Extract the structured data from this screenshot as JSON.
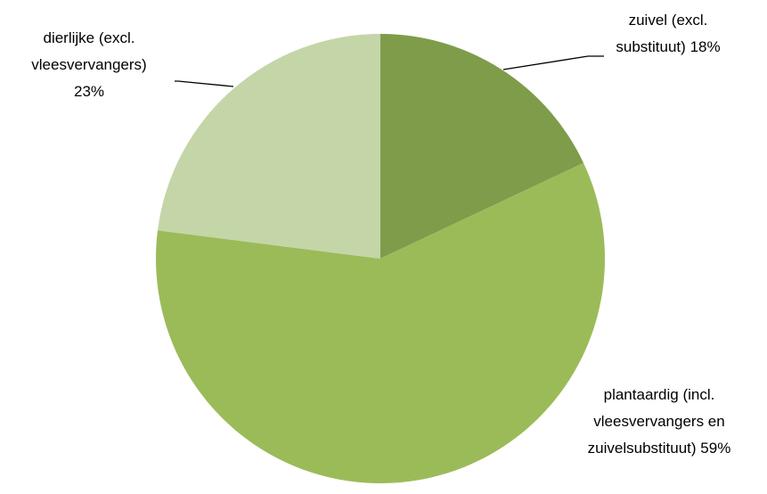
{
  "chart_data": {
    "type": "pie",
    "categories": [
      "zuivel (excl. substituut)",
      "plantaardig (incl. vleesvervangers en zuivelsubstituut)",
      "dierlijke (excl. vleesvervangers)"
    ],
    "values": [
      18,
      59,
      23
    ],
    "value_labels": [
      "18%",
      "59%",
      "23%"
    ],
    "colors": [
      "#7f9c4a",
      "#9bbb59",
      "#c4d5a8"
    ]
  }
}
